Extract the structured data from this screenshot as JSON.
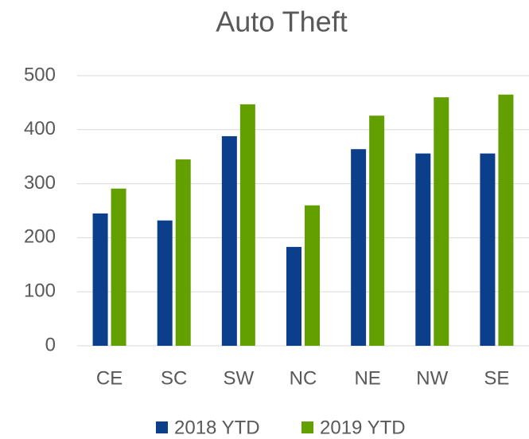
{
  "chart_data": {
    "type": "bar",
    "title": "Auto Theft",
    "categories": [
      "CE",
      "SC",
      "SW",
      "NC",
      "NE",
      "NW",
      "SE"
    ],
    "series": [
      {
        "name": "2018 YTD",
        "color": "#0b3f8c",
        "values": [
          245,
          232,
          388,
          183,
          364,
          356,
          356
        ]
      },
      {
        "name": "2019 YTD",
        "color": "#62a000",
        "values": [
          291,
          345,
          447,
          260,
          426,
          460,
          465
        ]
      }
    ],
    "ylim": [
      0,
      500
    ],
    "yticks": [
      0,
      100,
      200,
      300,
      400,
      500
    ],
    "grid": true,
    "legend": "bottom"
  }
}
